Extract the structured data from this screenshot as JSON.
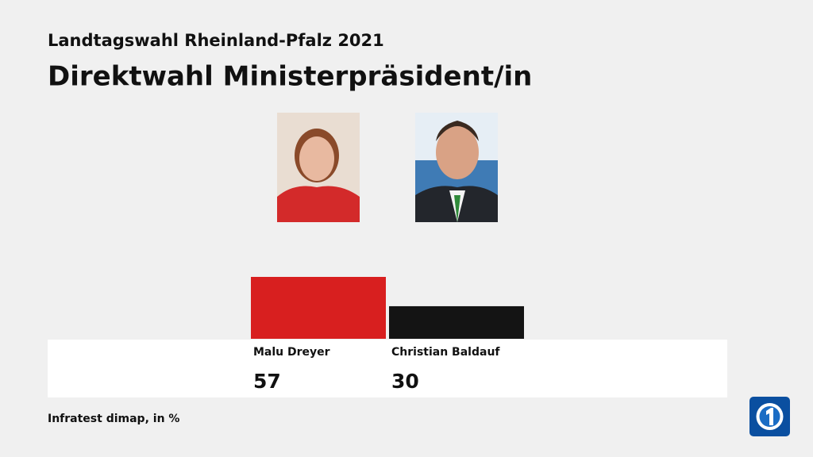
{
  "chart_data": {
    "type": "bar",
    "supertitle": "Landtagswahl Rheinland-Pfalz 2021",
    "title": "Direktwahl Ministerpräsident/in",
    "categories": [
      "Malu Dreyer",
      "Christian Baldauf"
    ],
    "values": [
      57,
      30
    ],
    "colors": [
      "#d81f1f",
      "#141414"
    ],
    "source": "Infratest dimap, in %"
  }
}
